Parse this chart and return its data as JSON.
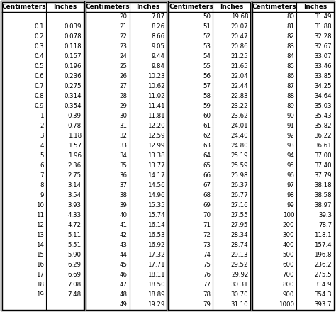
{
  "col1": {
    "cm": [
      "",
      "0.1",
      "0.2",
      "0.3",
      "0.4",
      "0.5",
      "0.6",
      "0.7",
      "0.8",
      "0.9",
      "1",
      "2",
      "3",
      "4",
      "5",
      "6",
      "7",
      "8",
      "9",
      "10",
      "11",
      "12",
      "13",
      "14",
      "15",
      "16",
      "17",
      "18",
      "19"
    ],
    "inches": [
      "",
      "0.039",
      "0.078",
      "0.118",
      "0.157",
      "0.196",
      "0.236",
      "0.275",
      "0.314",
      "0.354",
      "0.39",
      "0.78",
      "1.18",
      "1.57",
      "1.96",
      "2.36",
      "2.75",
      "3.14",
      "3.54",
      "3.93",
      "4.33",
      "4.72",
      "5.11",
      "5.51",
      "5.90",
      "6.29",
      "6.69",
      "7.08",
      "7.48"
    ]
  },
  "col2": {
    "cm": [
      "20",
      "21",
      "22",
      "23",
      "24",
      "25",
      "26",
      "27",
      "28",
      "29",
      "30",
      "31",
      "32",
      "33",
      "34",
      "35",
      "36",
      "37",
      "38",
      "39",
      "40",
      "41",
      "42",
      "43",
      "44",
      "45",
      "46",
      "47",
      "48",
      "49"
    ],
    "inches": [
      "7.87",
      "8.26",
      "8.66",
      "9.05",
      "9.44",
      "9.84",
      "10.23",
      "10.62",
      "11.02",
      "11.41",
      "11.81",
      "12.20",
      "12.59",
      "12.99",
      "13.38",
      "13.77",
      "14.17",
      "14.56",
      "14.96",
      "15.35",
      "15.74",
      "16.14",
      "16.53",
      "16.92",
      "17.32",
      "17.71",
      "18.11",
      "18.50",
      "18.89",
      "19.29"
    ]
  },
  "col3": {
    "cm": [
      "50",
      "51",
      "52",
      "53",
      "54",
      "55",
      "56",
      "57",
      "58",
      "59",
      "60",
      "61",
      "62",
      "63",
      "64",
      "65",
      "66",
      "67",
      "68",
      "69",
      "70",
      "71",
      "72",
      "73",
      "74",
      "75",
      "76",
      "77",
      "78",
      "79"
    ],
    "inches": [
      "19.68",
      "20.07",
      "20.47",
      "20.86",
      "21.25",
      "21.65",
      "22.04",
      "22.44",
      "22.83",
      "23.22",
      "23.62",
      "24.01",
      "24.40",
      "24.80",
      "25.19",
      "25.59",
      "25.98",
      "26.37",
      "26.77",
      "27.16",
      "27.55",
      "27.95",
      "28.34",
      "28.74",
      "29.13",
      "29.52",
      "29.92",
      "30.31",
      "30.70",
      "31.10"
    ]
  },
  "col4": {
    "cm": [
      "80",
      "81",
      "82",
      "83",
      "84",
      "85",
      "86",
      "87",
      "88",
      "89",
      "90",
      "91",
      "92",
      "93",
      "94",
      "95",
      "96",
      "97",
      "98",
      "99",
      "100",
      "200",
      "300",
      "400",
      "500",
      "600",
      "700",
      "800",
      "900",
      "1000"
    ],
    "inches": [
      "31.49",
      "31.88",
      "32.28",
      "32.67",
      "33.07",
      "33.46",
      "33.85",
      "34.25",
      "34.64",
      "35.03",
      "35.43",
      "35.82",
      "36.22",
      "36.61",
      "37.00",
      "37.40",
      "37.79",
      "38.18",
      "38.58",
      "38.97",
      "39.3",
      "78.7",
      "118.1",
      "157.4",
      "196.8",
      "236.2",
      "275.5",
      "314.9",
      "354.3",
      "393.7"
    ]
  },
  "header_cm": "Centimeters",
  "header_in": "Inches",
  "bg_color": "#ffffff",
  "border_color": "#000000",
  "header_font_size": 6.5,
  "data_font_size": 6.2
}
